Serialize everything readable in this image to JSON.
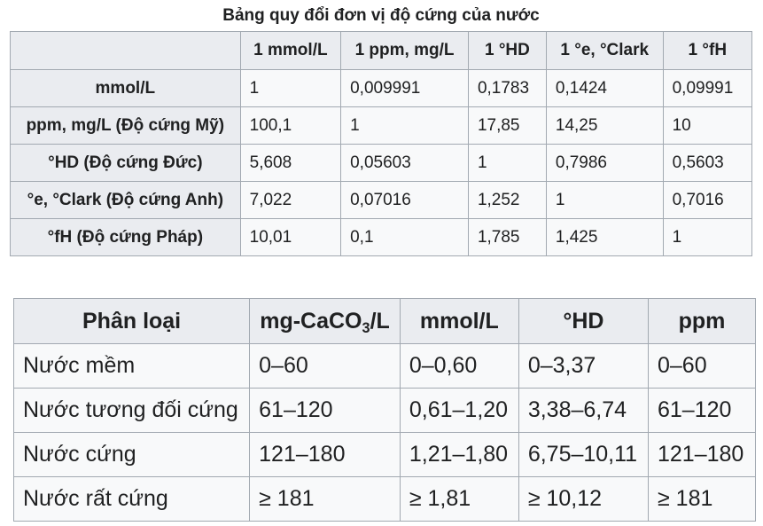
{
  "conversion_table": {
    "caption": "Bảng quy đổi đơn vị độ cứng của nước",
    "columns": [
      "1 mmol/L",
      "1 ppm, mg/L",
      "1 °HD",
      "1 °e, °Clark",
      "1 °fH"
    ],
    "rows": [
      {
        "label": "mmol/L",
        "values": [
          "1",
          "0,009991",
          "0,1783",
          "0,1424",
          "0,09991"
        ]
      },
      {
        "label": "ppm, mg/L (Độ cứng Mỹ)",
        "values": [
          "100,1",
          "1",
          "17,85",
          "14,25",
          "10"
        ]
      },
      {
        "label": "°HD (Độ cứng Đức)",
        "values": [
          "5,608",
          "0,05603",
          "1",
          "0,7986",
          "0,5603"
        ]
      },
      {
        "label": "°e, °Clark (Độ cứng Anh)",
        "values": [
          "7,022",
          "0,07016",
          "1,252",
          "1",
          "0,7016"
        ]
      },
      {
        "label": "°fH (Độ cứng Pháp)",
        "values": [
          "10,01",
          "0,1",
          "1,785",
          "1,425",
          "1"
        ]
      }
    ]
  },
  "classification_table": {
    "columns": {
      "c0": "Phân loại",
      "c1_prefix": "mg-CaCO",
      "c1_sub": "3",
      "c1_suffix": "/L",
      "c2": "mmol/L",
      "c3": "°HD",
      "c4": "ppm"
    },
    "rows": [
      {
        "label": "Nước mềm",
        "values": [
          "0–60",
          "0–0,60",
          "0–3,37",
          "0–60"
        ]
      },
      {
        "label": "Nước tương đối cứng",
        "values": [
          "61–120",
          "0,61–1,20",
          "3,38–6,74",
          "61–120"
        ]
      },
      {
        "label": "Nước cứng",
        "values": [
          "121–180",
          "1,21–1,80",
          "6,75–10,11",
          "121–180"
        ]
      },
      {
        "label": "Nước rất cứng",
        "values": [
          "≥ 181",
          "≥ 1,81",
          "≥ 10,12",
          "≥ 181"
        ]
      }
    ]
  }
}
